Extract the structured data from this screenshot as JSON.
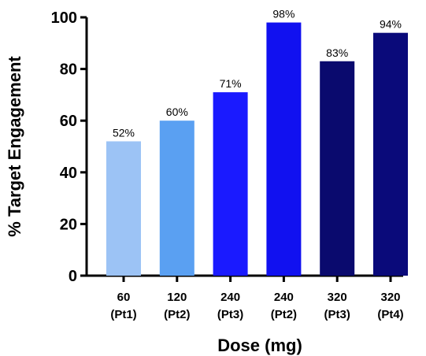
{
  "chart_data": {
    "type": "bar",
    "categories": [
      [
        "60",
        "(Pt1)"
      ],
      [
        "120",
        "(Pt2)"
      ],
      [
        "240",
        "(Pt3)"
      ],
      [
        "240",
        "(Pt2)"
      ],
      [
        "320",
        "(Pt3)"
      ],
      [
        "320",
        "(Pt4)"
      ]
    ],
    "values": [
      52,
      60,
      71,
      98,
      83,
      94
    ],
    "data_labels": [
      "52%",
      "60%",
      "71%",
      "98%",
      "83%",
      "94%"
    ],
    "bar_colors": [
      "#9cc3f5",
      "#5aa0f2",
      "#1a1aff",
      "#1111f0",
      "#0a0a6e",
      "#0a0a7a"
    ],
    "xlabel": "Dose (mg)",
    "ylabel": "% Target  Engagement",
    "ylim": [
      0,
      100
    ],
    "yticks": [
      0,
      20,
      40,
      60,
      80,
      100
    ],
    "grid": false,
    "legend": "none"
  }
}
